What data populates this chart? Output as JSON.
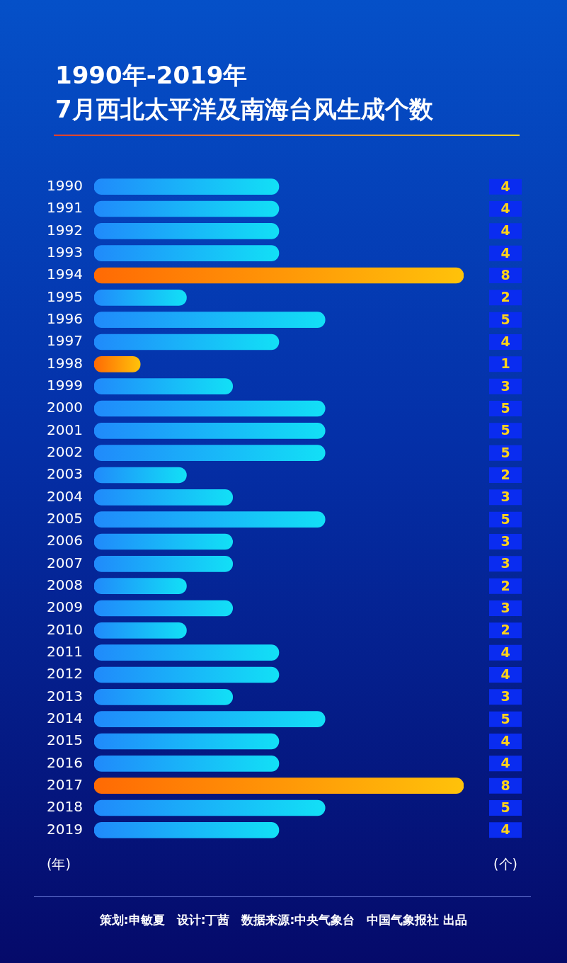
{
  "chart_data": {
    "type": "bar",
    "orientation": "horizontal",
    "title": "1990年-2019年\n7月西北太平洋及南海台风生成个数",
    "categories": [
      "1990",
      "1991",
      "1992",
      "1993",
      "1994",
      "1995",
      "1996",
      "1997",
      "1998",
      "1999",
      "2000",
      "2001",
      "2002",
      "2003",
      "2004",
      "2005",
      "2006",
      "2007",
      "2008",
      "2009",
      "2010",
      "2011",
      "2012",
      "2013",
      "2014",
      "2015",
      "2016",
      "2017",
      "2018",
      "2019"
    ],
    "values": [
      4,
      4,
      4,
      4,
      8,
      2,
      5,
      4,
      1,
      3,
      5,
      5,
      5,
      2,
      3,
      5,
      3,
      3,
      2,
      3,
      2,
      4,
      4,
      3,
      5,
      4,
      4,
      8,
      5,
      4
    ],
    "colors": [
      "#12e0f6",
      "#12e0f6",
      "#12e0f6",
      "#12e0f6",
      "#ffc20a",
      "#12e0f6",
      "#12e0f6",
      "#12e0f6",
      "#ffc20a",
      "#12e0f6",
      "#12e0f6",
      "#12e0f6",
      "#12e0f6",
      "#12e0f6",
      "#12e0f6",
      "#12e0f6",
      "#12e0f6",
      "#12e0f6",
      "#12e0f6",
      "#12e0f6",
      "#12e0f6",
      "#12e0f6",
      "#12e0f6",
      "#12e0f6",
      "#12e0f6",
      "#12e0f6",
      "#12e0f6",
      "#ffc20a",
      "#12e0f6",
      "#12e0f6"
    ],
    "tick_labels": "y",
    "data_labels": true,
    "legend": false,
    "ylabel": "(年)",
    "xlabel": "(个)",
    "annotations": [
      "策划:申敏夏　设计:丁茜　数据来源:中央气象台　中国气象报社 出品"
    ]
  }
}
